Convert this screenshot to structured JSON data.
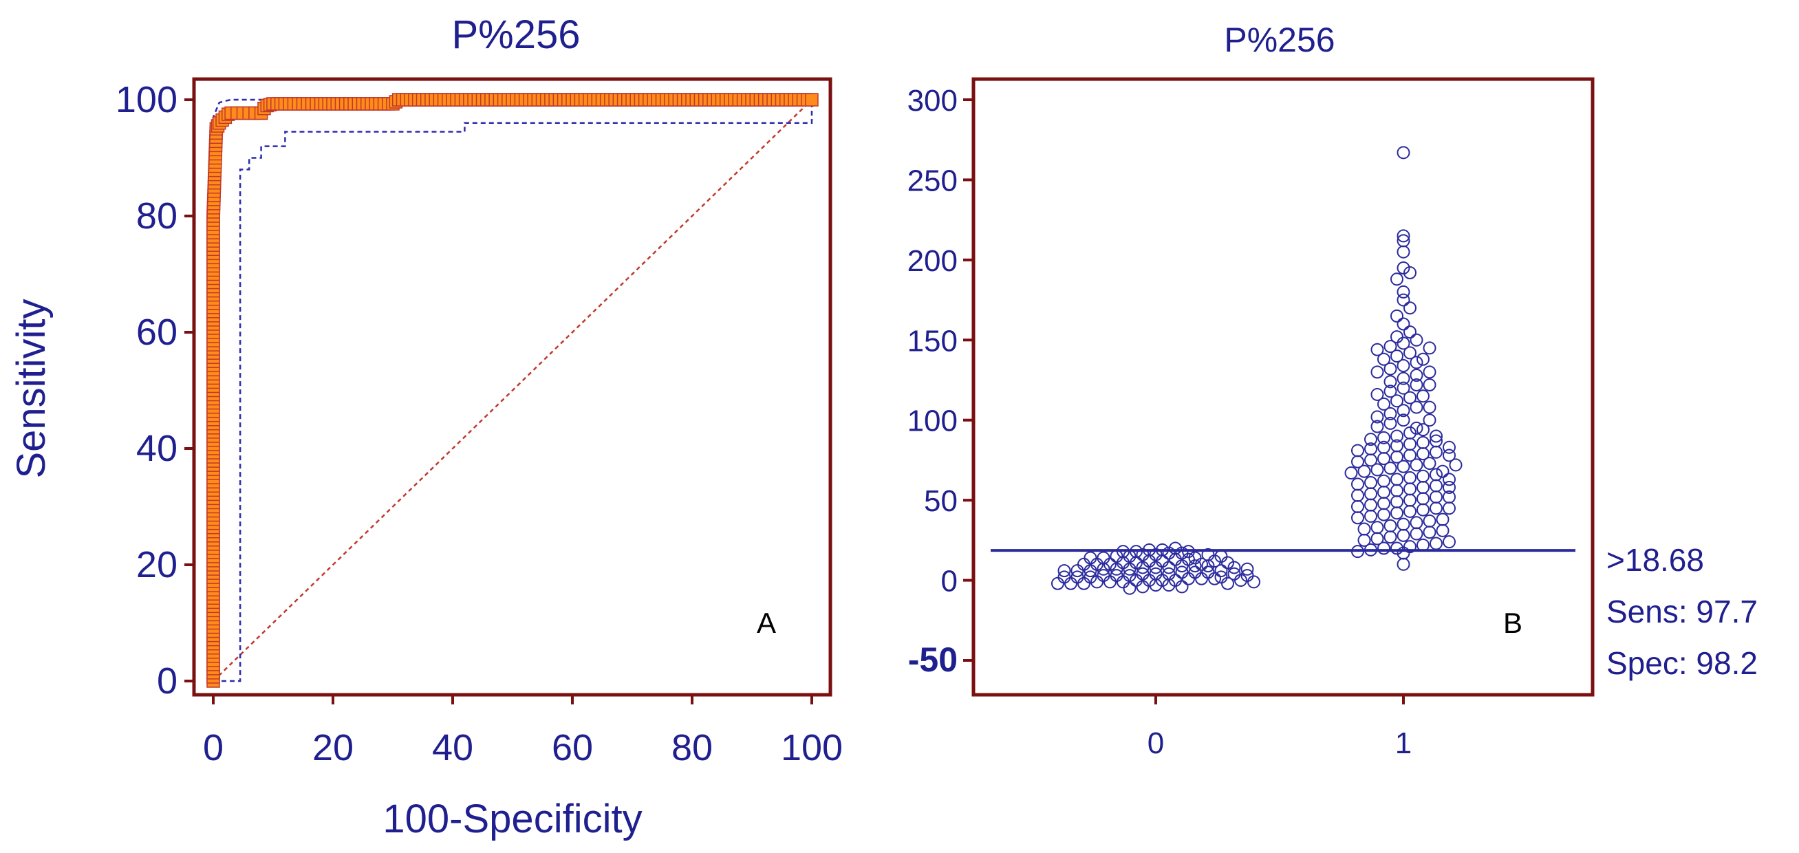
{
  "colors": {
    "frame": "#7a1010",
    "text": "#1f1f8f",
    "roc_fill": "#ff8c1a",
    "roc_edge": "#c0392b",
    "ci_line": "#2b2bb0",
    "diagonal": "#c0392b",
    "dot": "#2b2b9e",
    "cutoff_line": "#2b2b9e"
  },
  "chart_data": [
    {
      "type": "line",
      "panel": "A",
      "title": "P%256",
      "xlabel": "100-Specificity",
      "ylabel": "Sensitivity",
      "xlim": [
        0,
        100
      ],
      "ylim": [
        0,
        100
      ],
      "xticks": [
        "0",
        "20",
        "40",
        "60",
        "80",
        "100"
      ],
      "yticks": [
        "0",
        "20",
        "40",
        "60",
        "80",
        "100"
      ],
      "panel_label": "A",
      "series": [],
      "roc_curve": {
        "x": [
          0,
          0,
          0,
          0,
          0,
          0.5,
          1,
          1.5,
          2,
          2.5,
          3,
          4,
          5,
          6,
          7,
          8,
          8.5,
          9,
          10,
          12,
          15,
          18,
          20,
          25,
          30,
          31,
          35,
          40,
          45,
          50,
          55,
          60,
          65,
          70,
          75,
          80,
          85,
          90,
          95,
          100
        ],
        "y": [
          0,
          20,
          40,
          60,
          80,
          95,
          96,
          96.5,
          97,
          97.5,
          97.7,
          97.7,
          97.7,
          97.7,
          97.7,
          97.7,
          98.5,
          99,
          99.3,
          99.3,
          99.3,
          99.3,
          99.3,
          99.3,
          99.3,
          100,
          100,
          100,
          100,
          100,
          100,
          100,
          100,
          100,
          100,
          100,
          100,
          100,
          100,
          100
        ]
      },
      "ci_upper": {
        "x": [
          0,
          0,
          1,
          2,
          3,
          5,
          10,
          20,
          30,
          50,
          100
        ],
        "y": [
          0,
          97,
          99.5,
          99.8,
          100,
          100,
          100,
          100,
          100,
          100,
          100
        ]
      },
      "ci_lower": {
        "x": [
          0,
          3.5,
          4.5,
          4.5,
          5,
          6,
          6,
          8,
          8,
          12,
          12,
          42,
          42,
          100,
          100
        ],
        "y": [
          0,
          0,
          0,
          88,
          88,
          88,
          90,
          90,
          92,
          92,
          94.5,
          94.5,
          96,
          96,
          100
        ]
      },
      "diagonal": {
        "x": [
          0,
          100
        ],
        "y": [
          0,
          100
        ]
      }
    },
    {
      "type": "scatter",
      "panel": "B",
      "title": "P%256",
      "xlabel": "",
      "ylabel": "",
      "categories": [
        "0",
        "1"
      ],
      "ylim": [
        -60,
        310
      ],
      "yticks": [
        "300",
        "250",
        "200",
        "150",
        "100",
        "50",
        "0",
        "-50"
      ],
      "panel_label": "B",
      "cutoff": {
        "value": 18.68,
        "label": ">18.68",
        "sens_label": "Sens: 97.7",
        "spec_label": "Spec: 98.2"
      },
      "series": [
        {
          "category": "0",
          "values": [
            -5,
            -4,
            -3,
            -3,
            -2,
            -2,
            -2,
            -1,
            -1,
            -1,
            0,
            0,
            0,
            0,
            1,
            1,
            1,
            2,
            2,
            2,
            3,
            3,
            3,
            4,
            4,
            4,
            5,
            5,
            5,
            6,
            6,
            6,
            7,
            7,
            7,
            8,
            8,
            8,
            9,
            9,
            9,
            10,
            10,
            10,
            11,
            11,
            12,
            12,
            13,
            13,
            14,
            14,
            15,
            15,
            16,
            16,
            17,
            17,
            18,
            18,
            19,
            19,
            20,
            -4,
            -2,
            0,
            2,
            4,
            6,
            8,
            10,
            12,
            14,
            16,
            18,
            -1,
            3,
            7,
            11,
            15
          ]
        },
        {
          "category": "1",
          "values": [
            10,
            17,
            18,
            19,
            20,
            20,
            21,
            22,
            23,
            24,
            25,
            26,
            27,
            28,
            29,
            30,
            31,
            32,
            33,
            34,
            35,
            36,
            37,
            38,
            39,
            40,
            41,
            42,
            43,
            44,
            45,
            46,
            47,
            48,
            49,
            50,
            51,
            52,
            53,
            54,
            55,
            56,
            57,
            58,
            59,
            60,
            61,
            62,
            63,
            64,
            65,
            66,
            67,
            68,
            69,
            70,
            71,
            72,
            73,
            74,
            75,
            76,
            77,
            78,
            79,
            80,
            81,
            82,
            83,
            84,
            85,
            86,
            87,
            88,
            89,
            90,
            92,
            94,
            96,
            98,
            100,
            102,
            104,
            106,
            108,
            110,
            112,
            114,
            116,
            118,
            120,
            122,
            124,
            126,
            128,
            130,
            132,
            134,
            136,
            138,
            140,
            142,
            144,
            146,
            148,
            150,
            152,
            155,
            160,
            165,
            170,
            175,
            180,
            188,
            192,
            195,
            205,
            212,
            215,
            267,
            45,
            52,
            58,
            63,
            68,
            72,
            78,
            83,
            90,
            95,
            100,
            108,
            115,
            122,
            130,
            138,
            145
          ]
        }
      ]
    }
  ]
}
